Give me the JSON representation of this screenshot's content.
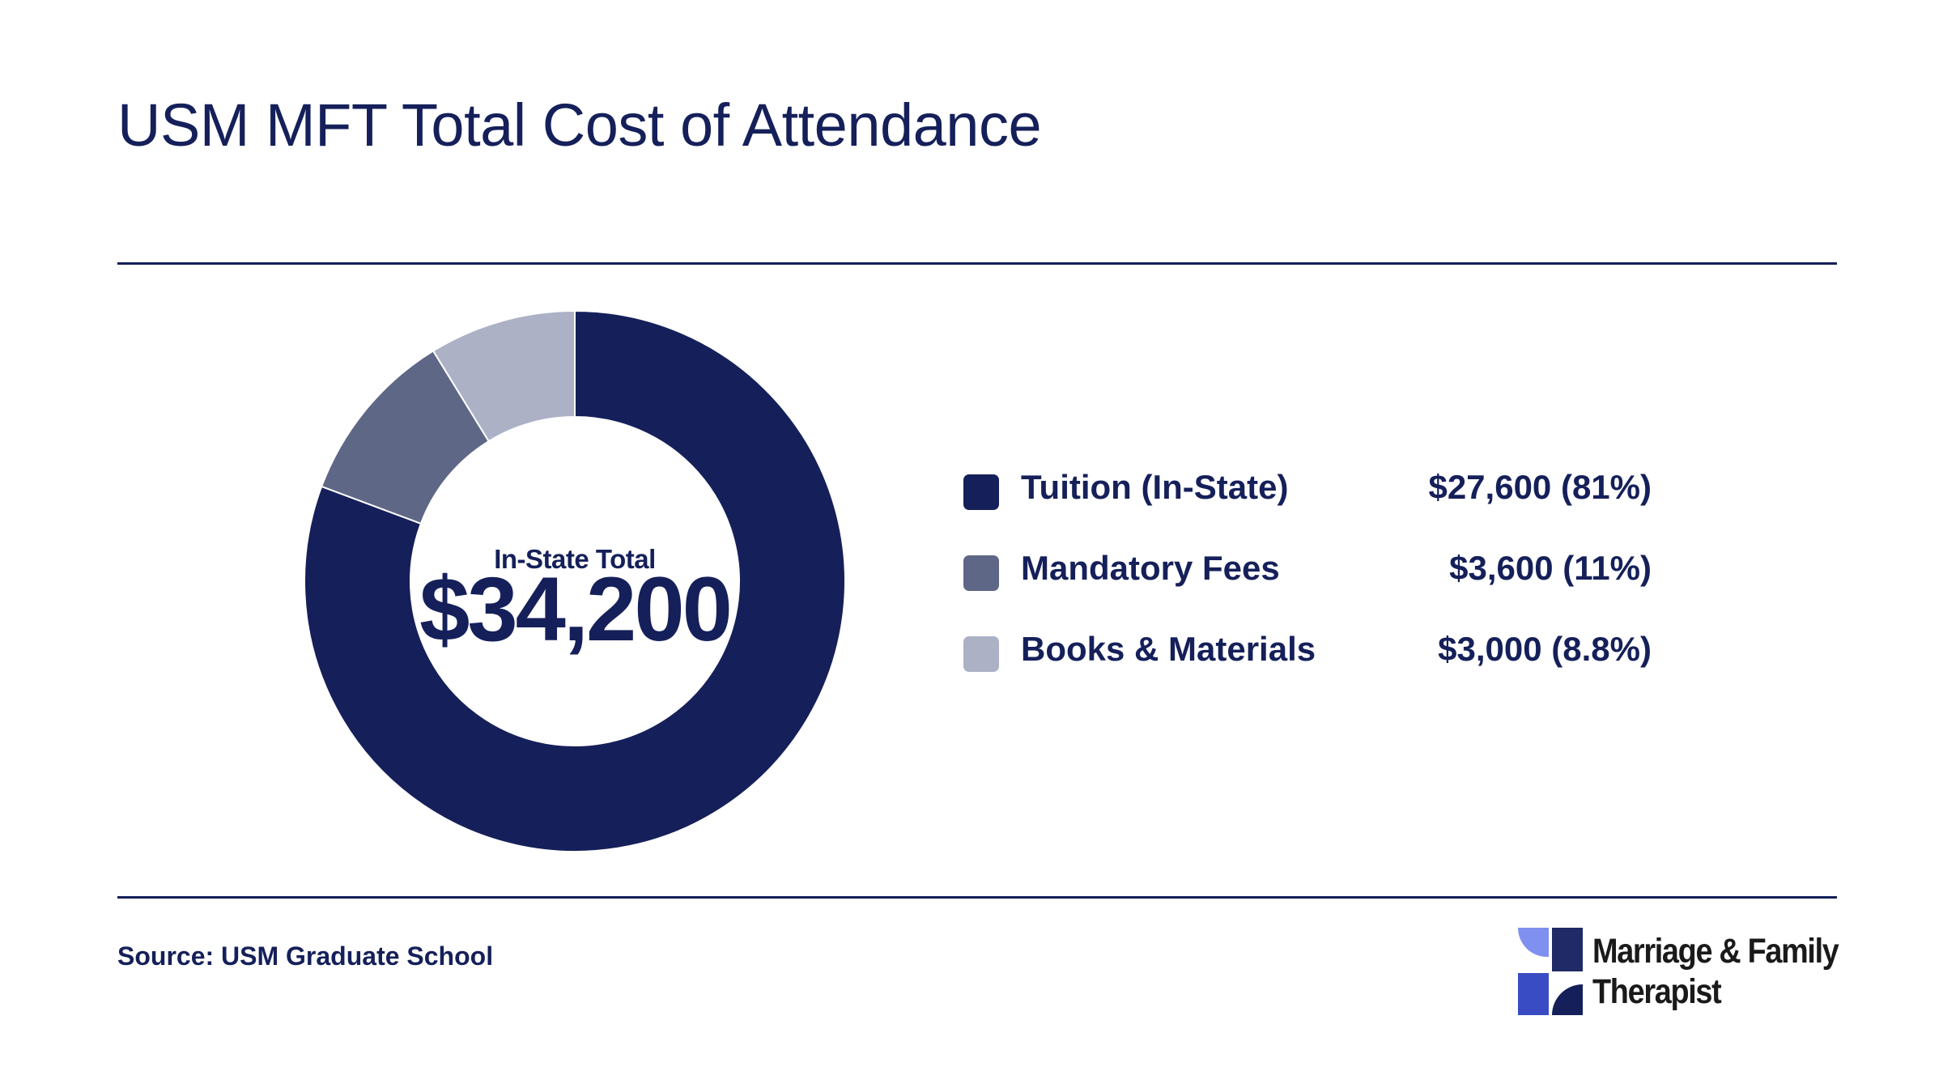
{
  "title": "USM MFT Total Cost of Attendance",
  "center": {
    "label": "In-State Total",
    "value": "$34,200"
  },
  "chart_data": {
    "type": "pie",
    "title": "USM MFT Total Cost of Attendance",
    "total_label": "In-State Total",
    "total": 34200,
    "series": [
      {
        "name": "Tuition (In-State)",
        "value": 27600,
        "percent": 81,
        "display": "$27,600 (81%)",
        "color": "#15205a"
      },
      {
        "name": "Mandatory Fees",
        "value": 3600,
        "percent": 11,
        "display": "$3,600 (11%)",
        "color": "#5f6787"
      },
      {
        "name": "Books & Materials",
        "value": 3000,
        "percent": 8.8,
        "display": "$3,000 (8.8%)",
        "color": "#adb1c6"
      }
    ]
  },
  "source": "Source: USM Graduate School",
  "logo": {
    "line1": "Marriage & Family",
    "line2": "Therapist",
    "colors": [
      "#7f90f0",
      "#1f2a66",
      "#3a4cc4",
      "#15205a"
    ]
  }
}
